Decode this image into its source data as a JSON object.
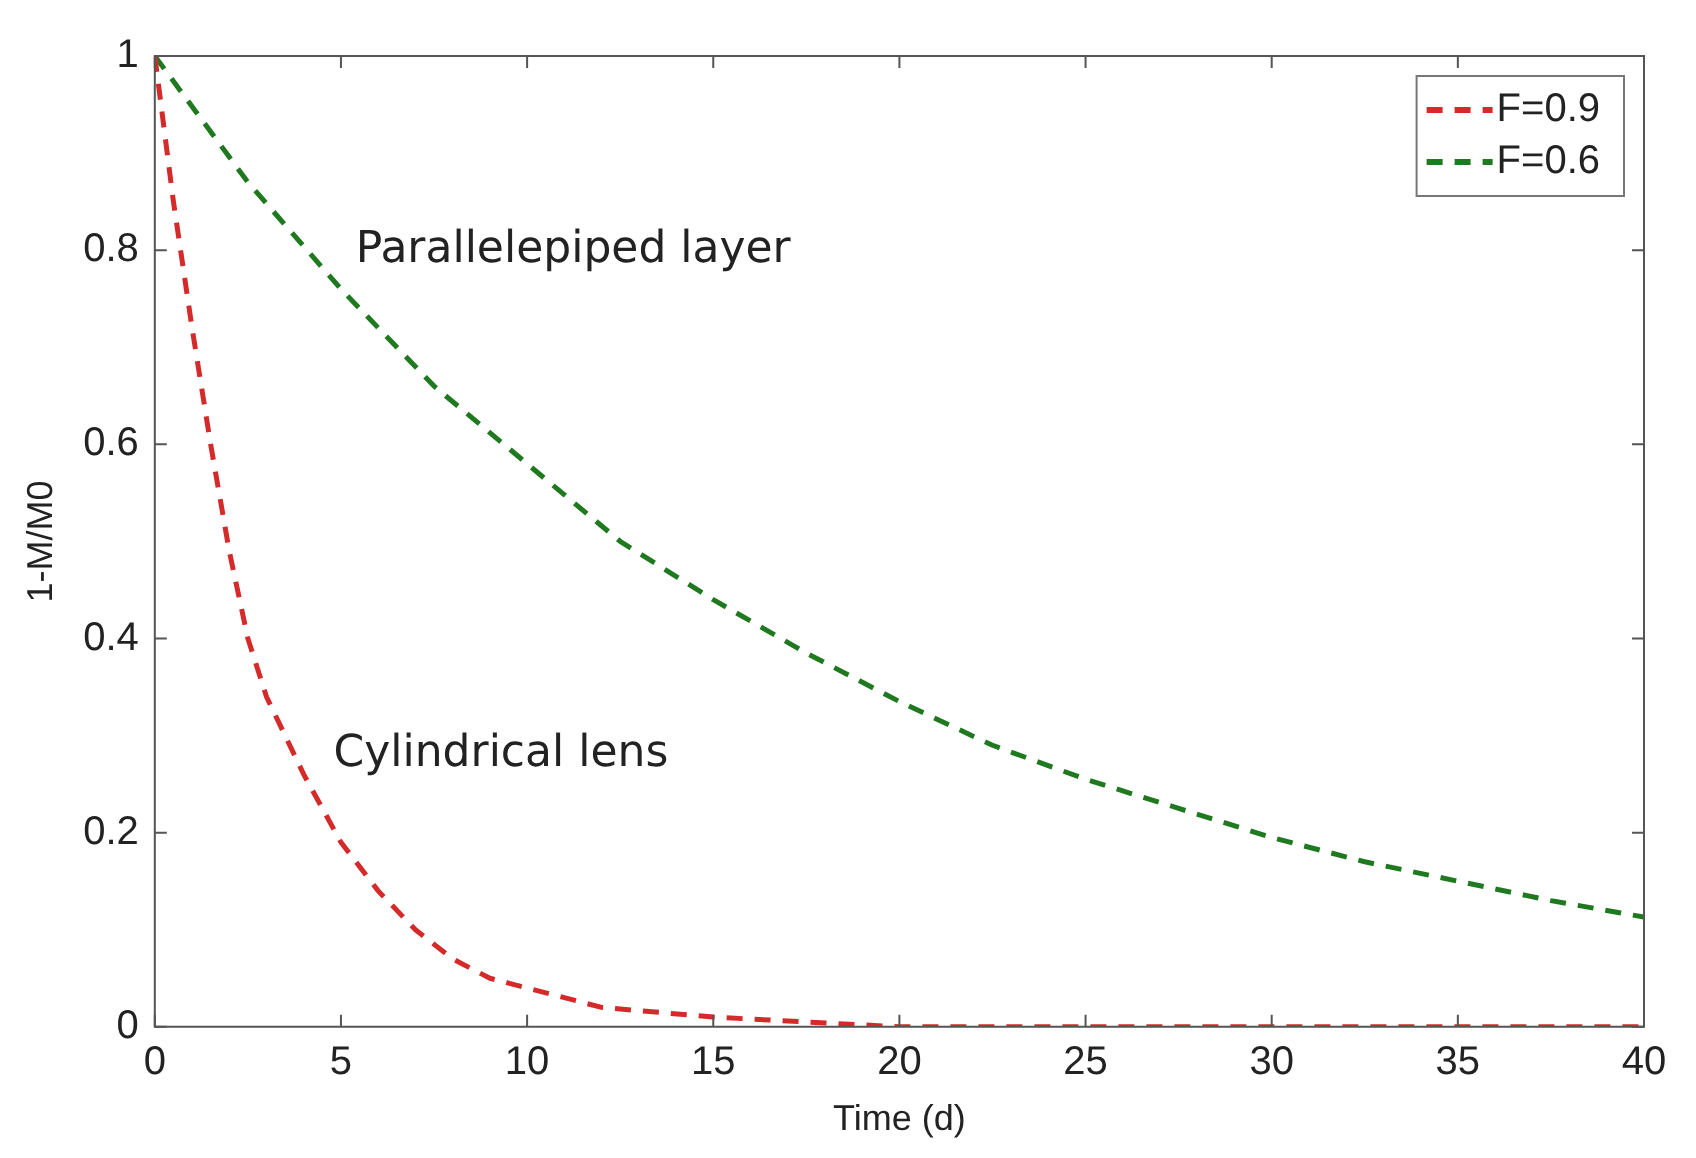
{
  "chart_data": {
    "type": "line",
    "xlabel": "Time (d)",
    "ylabel": "1-M/M0",
    "xlim": [
      0,
      40
    ],
    "xticks": [
      0,
      5,
      10,
      15,
      20,
      25,
      30,
      35,
      40
    ],
    "ylim": [
      0,
      1
    ],
    "yticks": [
      0,
      0.2,
      0.4,
      0.6,
      0.8,
      1
    ],
    "grid": false,
    "legend": "top right",
    "line_style": "dashed",
    "marker": "none",
    "annotations": [
      "Parallelepiped layer",
      "Cylindrical lens"
    ],
    "series": [
      {
        "name": "F=0.9",
        "color": "#d42a2a",
        "x": [
          0,
          0.5,
          1,
          1.5,
          2,
          2.5,
          3,
          4,
          5,
          6,
          7,
          8,
          9,
          10,
          12,
          15,
          20,
          25,
          30,
          35,
          40
        ],
        "values": [
          1,
          0.85,
          0.72,
          0.6,
          0.49,
          0.4,
          0.34,
          0.26,
          0.19,
          0.14,
          0.1,
          0.07,
          0.05,
          0.04,
          0.02,
          0.01,
          0,
          0,
          0,
          0,
          0
        ]
      },
      {
        "name": "F=0.6",
        "color": "#1f7a1f",
        "x": [
          0,
          2.5,
          5,
          7.5,
          10,
          12.5,
          15,
          17.5,
          20,
          22.5,
          25,
          27.5,
          30,
          32.5,
          35,
          37.5,
          40
        ],
        "values": [
          1,
          0.87,
          0.76,
          0.66,
          0.58,
          0.5,
          0.44,
          0.385,
          0.335,
          0.29,
          0.255,
          0.225,
          0.195,
          0.17,
          0.15,
          0.13,
          0.113
        ]
      }
    ]
  }
}
